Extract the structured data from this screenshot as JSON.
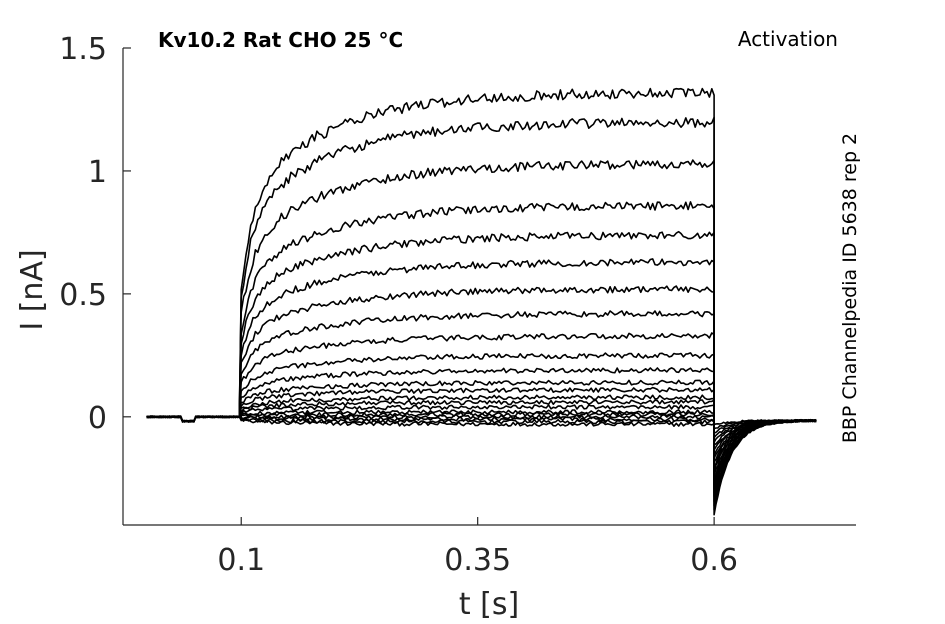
{
  "chart_data": {
    "type": "line",
    "title": "Kv10.2  Rat  CHO  25 °C",
    "annotation": "Activation",
    "source_label": "BBP Channelpedia ID 5638 rep 2",
    "xlabel": "t [s]",
    "ylabel": "I [nA]",
    "xlim": [
      -0.025,
      0.75
    ],
    "ylim": [
      -0.44,
      1.5
    ],
    "xticks": [
      0.1,
      0.35,
      0.6
    ],
    "xtick_labels": [
      "0.1",
      "0.35",
      "0.6"
    ],
    "yticks": [
      0,
      0.5,
      1,
      1.5
    ],
    "ytick_labels": [
      "0",
      "0.5",
      "1",
      "1.5"
    ],
    "grid": false,
    "line_color": "#000000",
    "pulse": {
      "start": 0.1,
      "end": 0.6,
      "trace_end": 0.71
    },
    "steady_currents": [
      -0.03,
      -0.02,
      -0.01,
      0.0,
      0.01,
      0.02,
      0.04,
      0.06,
      0.08,
      0.11,
      0.14,
      0.19,
      0.25,
      0.33,
      0.42,
      0.52,
      0.63,
      0.74,
      0.86,
      1.03,
      1.2,
      1.32
    ],
    "tail_minimum": -0.38
  }
}
